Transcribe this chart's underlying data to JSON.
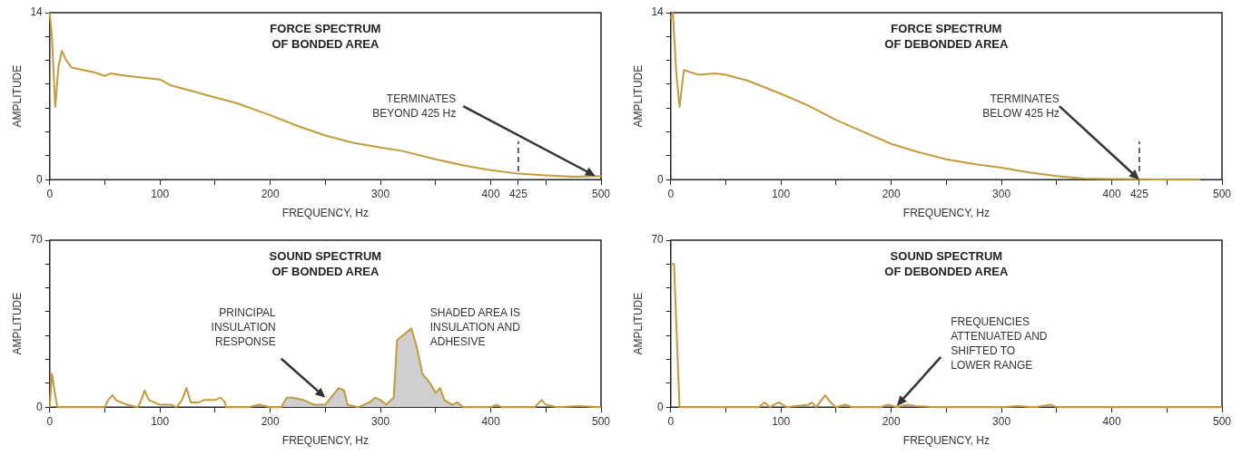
{
  "chart_data": [
    {
      "type": "line",
      "title": "FORCE SPECTRUM\nOF BONDED AREA",
      "xlabel": "FREQUENCY, Hz",
      "ylabel": "AMPLITUDE",
      "color": "#c49a3c",
      "marker": "none",
      "x": [
        0,
        2,
        5,
        8,
        11,
        15,
        20,
        30,
        40,
        50,
        55,
        70,
        100,
        110,
        130,
        150,
        170,
        200,
        225,
        250,
        275,
        300,
        320,
        350,
        375,
        400,
        425,
        450,
        475,
        500
      ],
      "values": [
        14,
        12,
        6.1,
        9.5,
        10.8,
        10.0,
        9.4,
        9.2,
        9.0,
        8.7,
        8.9,
        8.7,
        8.4,
        7.9,
        7.4,
        6.9,
        6.4,
        5.4,
        4.5,
        3.7,
        3.1,
        2.7,
        2.4,
        1.7,
        1.2,
        0.8,
        0.5,
        0.35,
        0.25,
        0.3
      ],
      "xlim": [
        0,
        500
      ],
      "ylim": [
        0,
        14
      ],
      "xticks": [
        0,
        {
          "value": 50,
          "label": null
        },
        100,
        {
          "value": 150,
          "label": null
        },
        200,
        {
          "value": 250,
          "label": null
        },
        300,
        {
          "value": 350,
          "label": null
        },
        400,
        425,
        {
          "value": 450,
          "label": null
        },
        500
      ],
      "yticks": [
        0,
        {
          "value": 2,
          "label": null
        },
        {
          "value": 4,
          "label": null
        },
        {
          "value": 6,
          "label": null
        },
        {
          "value": 8,
          "label": null
        },
        {
          "value": 10,
          "label": null
        },
        {
          "value": 12,
          "label": null
        },
        14
      ],
      "ref_lines": [
        {
          "axis": "x",
          "value": 425,
          "label": null,
          "line_style": "dashed",
          "color": "#333333"
        }
      ],
      "annotations": [
        {
          "text": "TERMINATES\nBEYOND 425 Hz",
          "x": 495,
          "y": 0.3
        }
      ]
    },
    {
      "type": "line",
      "title": "FORCE SPECTRUM\nOF DEBONDED AREA",
      "xlabel": "FREQUENCY, Hz",
      "ylabel": "AMPLITUDE",
      "color": "#c49a3c",
      "marker": "none",
      "x": [
        0,
        2,
        5,
        8,
        12,
        15,
        25,
        40,
        50,
        70,
        100,
        125,
        150,
        175,
        200,
        225,
        250,
        275,
        300,
        325,
        350,
        375,
        400,
        425,
        450,
        480
      ],
      "values": [
        13.5,
        14,
        9,
        6.1,
        9.2,
        9.1,
        8.8,
        8.9,
        8.8,
        8.3,
        7.2,
        6.2,
        5.0,
        4.0,
        3.0,
        2.3,
        1.7,
        1.3,
        1.0,
        0.6,
        0.3,
        0.1,
        0.05,
        0.03,
        0,
        0
      ],
      "xlim": [
        0,
        500
      ],
      "ylim": [
        0,
        14
      ],
      "xticks": [
        0,
        {
          "value": 50,
          "label": null
        },
        100,
        {
          "value": 150,
          "label": null
        },
        200,
        {
          "value": 250,
          "label": null
        },
        300,
        {
          "value": 350,
          "label": null
        },
        400,
        425,
        {
          "value": 450,
          "label": null
        },
        500
      ],
      "yticks": [
        0,
        {
          "value": 2,
          "label": null
        },
        {
          "value": 4,
          "label": null
        },
        {
          "value": 6,
          "label": null
        },
        {
          "value": 8,
          "label": null
        },
        {
          "value": 10,
          "label": null
        },
        {
          "value": 12,
          "label": null
        },
        14
      ],
      "ref_lines": [
        {
          "axis": "x",
          "value": 425,
          "label": null,
          "line_style": "dashed",
          "color": "#333333"
        }
      ],
      "annotations": [
        {
          "text": "TERMINATES\nBELOW 425 Hz",
          "x": 425,
          "y": 0
        }
      ]
    },
    {
      "type": "line",
      "title": "SOUND SPECTRUM\nOF BONDED AREA",
      "xlabel": "FREQUENCY, Hz",
      "ylabel": "AMPLITUDE",
      "marker": "none",
      "series": [
        {
          "type": "line",
          "color": "#c49a3c",
          "x": [
            0,
            2,
            5,
            7,
            50,
            53,
            57,
            60,
            70,
            80,
            83,
            86,
            90,
            100,
            110,
            115,
            120,
            124,
            128,
            135,
            140,
            150,
            155,
            159,
            160,
            180,
            190,
            200,
            210,
            215,
            220,
            230,
            240,
            250,
            255,
            262,
            267,
            270,
            280,
            290,
            295,
            300,
            305,
            312,
            315,
            320,
            328,
            333,
            338,
            345,
            350,
            354,
            358,
            365,
            370,
            375,
            400,
            405,
            410,
            440,
            446,
            450,
            460,
            480,
            500
          ],
          "values": [
            0,
            14,
            5,
            0,
            0,
            3,
            5,
            3,
            1,
            0,
            3,
            7,
            3,
            1,
            1,
            0,
            3,
            8,
            2,
            2,
            3,
            3,
            4,
            2,
            0,
            0,
            1,
            0,
            0,
            4,
            4,
            3,
            1,
            1,
            4,
            8,
            7,
            1,
            0,
            2,
            4,
            3,
            1,
            4,
            28,
            30,
            33,
            25,
            14,
            10,
            6,
            8,
            3,
            1,
            2,
            0,
            0,
            1,
            0,
            0,
            3,
            1,
            0,
            0.5,
            0
          ]
        },
        {
          "type": "area",
          "color": "#cfcfcf",
          "x": [
            210,
            215,
            220,
            230,
            240,
            250,
            255,
            262,
            267,
            270,
            280,
            290,
            295,
            300,
            305,
            312,
            315,
            320,
            328,
            333,
            338,
            345,
            350,
            354,
            358,
            365,
            370,
            375,
            400
          ],
          "values": [
            0,
            4,
            4,
            3,
            1,
            1,
            4,
            8,
            7,
            1,
            0,
            2,
            4,
            3,
            1,
            4,
            28,
            30,
            33,
            25,
            14,
            10,
            6,
            8,
            3,
            1,
            2,
            0,
            0
          ]
        }
      ],
      "xlim": [
        0,
        500
      ],
      "ylim": [
        0,
        70
      ],
      "xticks": [
        0,
        {
          "value": 50,
          "label": null
        },
        100,
        {
          "value": 150,
          "label": null
        },
        200,
        {
          "value": 250,
          "label": null
        },
        300,
        {
          "value": 350,
          "label": null
        },
        400,
        {
          "value": 450,
          "label": null
        },
        500
      ],
      "yticks": [
        0,
        {
          "value": 10,
          "label": null
        },
        {
          "value": 20,
          "label": null
        },
        {
          "value": 30,
          "label": null
        },
        {
          "value": 40,
          "label": null
        },
        {
          "value": 50,
          "label": null
        },
        {
          "value": 60,
          "label": null
        },
        70
      ],
      "annotations": [
        {
          "text": "PRINCIPAL\nINSULATION\nRESPONSE",
          "x": 250,
          "y": 4
        },
        "SHADED AREA IS\nINSULATION AND\nADHESIVE"
      ]
    },
    {
      "type": "line",
      "title": "SOUND SPECTRUM\nOF DEBONDED AREA",
      "xlabel": "FREQUENCY, Hz",
      "ylabel": "AMPLITUDE",
      "color": "#c49a3c",
      "marker": "none",
      "x": [
        0,
        3,
        8,
        80,
        85,
        90,
        98,
        105,
        125,
        128,
        132,
        140,
        145,
        150,
        158,
        165,
        190,
        197,
        205,
        215,
        222,
        240,
        300,
        315,
        330,
        345,
        350,
        500
      ],
      "values": [
        60,
        60,
        0,
        0,
        2,
        0,
        2,
        0,
        1,
        2,
        0,
        5,
        2,
        0,
        1,
        0,
        0,
        1,
        0,
        1,
        0.5,
        0,
        0,
        0.5,
        0,
        1,
        0,
        0
      ],
      "xlim": [
        0,
        500
      ],
      "ylim": [
        0,
        70
      ],
      "xticks": [
        0,
        {
          "value": 50,
          "label": null
        },
        100,
        {
          "value": 150,
          "label": null
        },
        200,
        {
          "value": 250,
          "label": null
        },
        300,
        {
          "value": 350,
          "label": null
        },
        400,
        {
          "value": 450,
          "label": null
        },
        500
      ],
      "yticks": [
        0,
        {
          "value": 10,
          "label": null
        },
        {
          "value": 20,
          "label": null
        },
        {
          "value": 30,
          "label": null
        },
        {
          "value": 40,
          "label": null
        },
        {
          "value": 50,
          "label": null
        },
        {
          "value": 60,
          "label": null
        },
        70
      ],
      "annotations": [
        {
          "text": "FREQUENCIES\nATTENUATED AND\nSHIFTED TO\nLOWER RANGE",
          "x": 205,
          "y": 0.5
        }
      ]
    }
  ]
}
